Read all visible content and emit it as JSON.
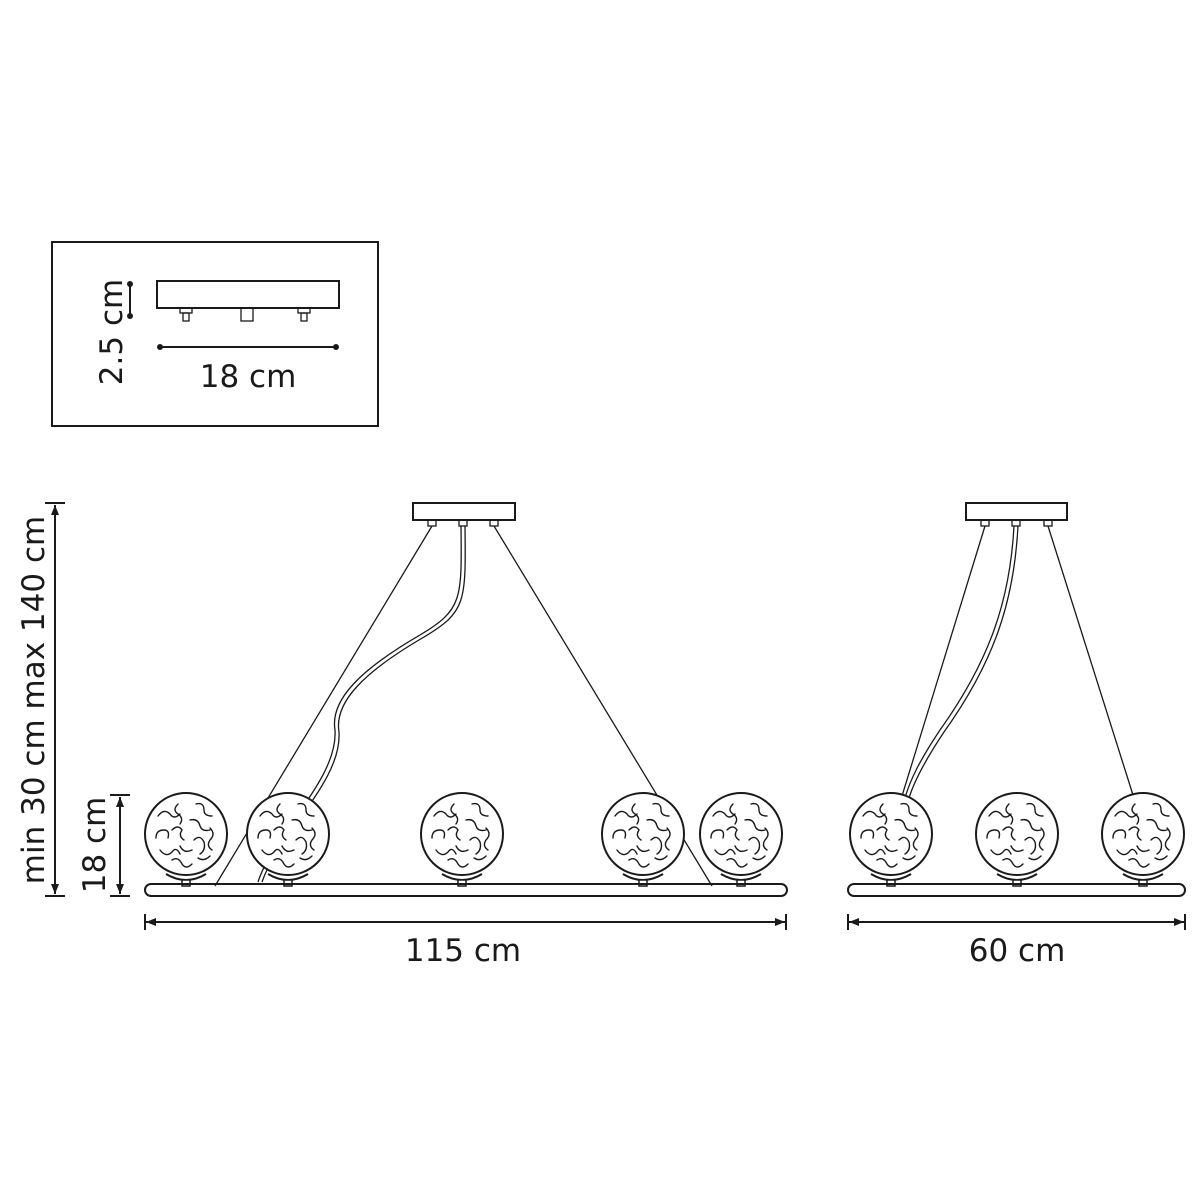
{
  "inset": {
    "height_label": "2.5 cm",
    "width_label": "18 cm"
  },
  "front_view": {
    "height_range_label": "min 30 cm max 140 cm",
    "globe_height_label": "18 cm",
    "width_label": "115 cm",
    "globe_count": 5
  },
  "side_view": {
    "width_label": "60 cm",
    "globe_count": 3
  },
  "colors": {
    "line": "#1a1a1a",
    "background": "#ffffff"
  }
}
